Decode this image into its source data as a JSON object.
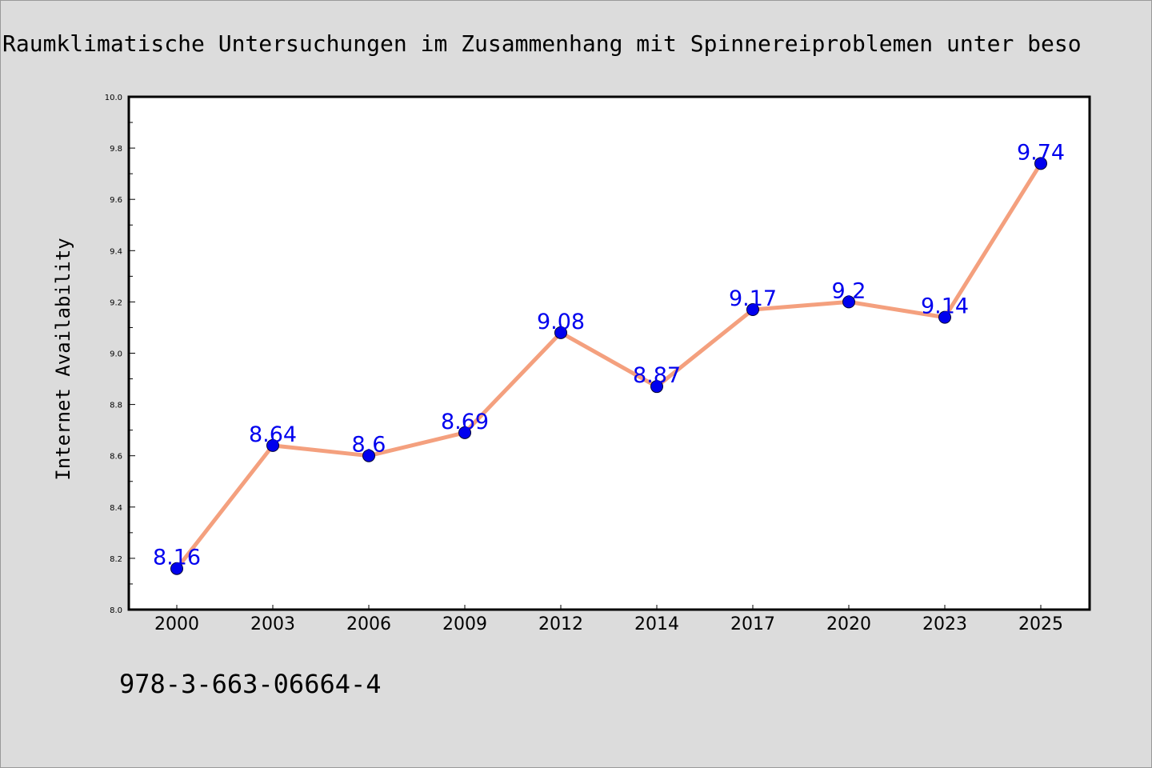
{
  "chart_data": {
    "type": "line",
    "title": "Raumklimatische Untersuchungen im Zusammenhang mit Spinnereiproblemen unter beso",
    "xlabel": "",
    "ylabel": "Internet Availability",
    "categories": [
      "2000",
      "2003",
      "2006",
      "2009",
      "2012",
      "2014",
      "2017",
      "2020",
      "2023",
      "2025"
    ],
    "series": [
      {
        "values": [
          8.16,
          8.64,
          8.6,
          8.69,
          9.08,
          8.87,
          9.17,
          9.2,
          9.14,
          9.74
        ],
        "labels": [
          "8.16",
          "8.64",
          "8.6",
          "8.69",
          "9.08",
          "8.87",
          "9.17",
          "9.2",
          "9.14",
          "9.74"
        ]
      }
    ],
    "ylim": [
      8.0,
      10.0
    ],
    "yticks": [
      "8.0",
      "8.2",
      "8.4",
      "8.6",
      "8.8",
      "9.0",
      "9.2",
      "9.4",
      "9.6",
      "9.8",
      "10.0"
    ],
    "grid": false,
    "colors": {
      "line": "#f4a07e",
      "marker": "#0000ee",
      "data_label": "#0000ee",
      "background": "#dcdcdc",
      "plot_background": "#ffffff"
    }
  },
  "footer": {
    "isbn": "978-3-663-06664-4"
  }
}
